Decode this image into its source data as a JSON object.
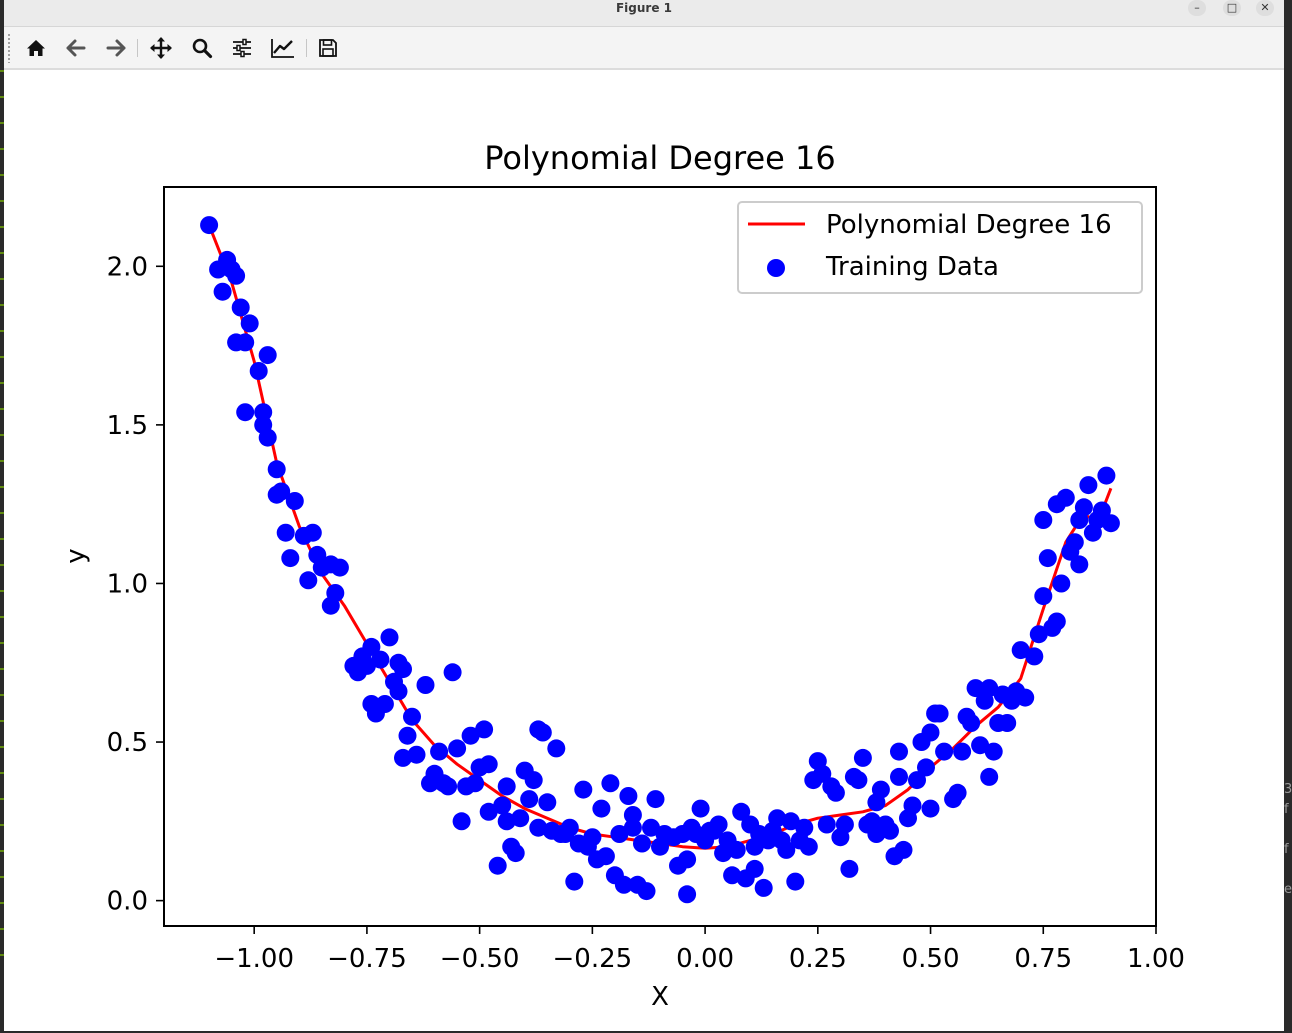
{
  "window": {
    "title": "Figure 1",
    "controls": [
      "minimize",
      "maximize",
      "close"
    ]
  },
  "toolbar": {
    "tools": [
      {
        "name": "home-icon",
        "tooltip": "Home"
      },
      {
        "name": "back-icon",
        "tooltip": "Back"
      },
      {
        "name": "forward-icon",
        "tooltip": "Forward"
      },
      {
        "name": "pan-icon",
        "tooltip": "Pan"
      },
      {
        "name": "zoom-icon",
        "tooltip": "Zoom"
      },
      {
        "name": "subplots-icon",
        "tooltip": "Subplots"
      },
      {
        "name": "customize-icon",
        "tooltip": "Customize"
      },
      {
        "name": "save-icon",
        "tooltip": "Save"
      }
    ]
  },
  "colors": {
    "line": "#ff0000",
    "points": "#0000ff",
    "axes": "#000000"
  },
  "side_text": "3\nf\n\nf\n\ne",
  "chart_data": {
    "type": "scatter",
    "title": "Polynomial Degree 16",
    "xlabel": "X",
    "ylabel": "y",
    "xlim": [
      -1.2,
      1.0
    ],
    "ylim": [
      -0.08,
      2.25
    ],
    "xticks": [
      -1.0,
      -0.75,
      -0.5,
      -0.25,
      0.0,
      0.25,
      0.5,
      0.75,
      1.0
    ],
    "xtick_labels": [
      "−1.00",
      "−0.75",
      "−0.50",
      "−0.25",
      "0.00",
      "0.25",
      "0.50",
      "0.75",
      "1.00"
    ],
    "yticks": [
      0.0,
      0.5,
      1.0,
      1.5,
      2.0
    ],
    "ytick_labels": [
      "0.0",
      "0.5",
      "1.0",
      "1.5",
      "2.0"
    ],
    "legend": {
      "placement": "upper right",
      "entries": [
        "Polynomial Degree 16",
        "Training Data"
      ]
    },
    "series": [
      {
        "name": "Polynomial Degree 16",
        "kind": "line",
        "color": "#ff0000",
        "points": [
          [
            -1.1,
            2.13
          ],
          [
            -1.05,
            1.95
          ],
          [
            -1.0,
            1.7
          ],
          [
            -0.95,
            1.38
          ],
          [
            -0.9,
            1.18
          ],
          [
            -0.85,
            1.03
          ],
          [
            -0.8,
            0.93
          ],
          [
            -0.75,
            0.81
          ],
          [
            -0.7,
            0.69
          ],
          [
            -0.65,
            0.57
          ],
          [
            -0.6,
            0.49
          ],
          [
            -0.55,
            0.43
          ],
          [
            -0.5,
            0.38
          ],
          [
            -0.45,
            0.33
          ],
          [
            -0.4,
            0.29
          ],
          [
            -0.35,
            0.26
          ],
          [
            -0.3,
            0.23
          ],
          [
            -0.25,
            0.21
          ],
          [
            -0.2,
            0.2
          ],
          [
            -0.15,
            0.19
          ],
          [
            -0.1,
            0.18
          ],
          [
            -0.05,
            0.17
          ],
          [
            0.0,
            0.165
          ],
          [
            0.05,
            0.17
          ],
          [
            0.1,
            0.19
          ],
          [
            0.15,
            0.21
          ],
          [
            0.2,
            0.24
          ],
          [
            0.25,
            0.26
          ],
          [
            0.3,
            0.27
          ],
          [
            0.35,
            0.28
          ],
          [
            0.4,
            0.3
          ],
          [
            0.45,
            0.35
          ],
          [
            0.5,
            0.42
          ],
          [
            0.55,
            0.48
          ],
          [
            0.6,
            0.55
          ],
          [
            0.65,
            0.61
          ],
          [
            0.7,
            0.7
          ],
          [
            0.75,
            0.92
          ],
          [
            0.8,
            1.13
          ],
          [
            0.84,
            1.22
          ],
          [
            0.87,
            1.19
          ],
          [
            0.9,
            1.3
          ]
        ]
      },
      {
        "name": "Training Data",
        "kind": "scatter",
        "color": "#0000ff",
        "points": [
          [
            -1.1,
            2.13
          ],
          [
            -1.08,
            1.99
          ],
          [
            -1.07,
            1.92
          ],
          [
            -1.06,
            2.02
          ],
          [
            -1.05,
            1.99
          ],
          [
            -1.04,
            1.97
          ],
          [
            -1.04,
            1.76
          ],
          [
            -1.03,
            1.87
          ],
          [
            -1.02,
            1.76
          ],
          [
            -1.01,
            1.82
          ],
          [
            -1.02,
            1.54
          ],
          [
            -0.99,
            1.67
          ],
          [
            -0.98,
            1.54
          ],
          [
            -0.98,
            1.5
          ],
          [
            -0.97,
            1.46
          ],
          [
            -0.97,
            1.72
          ],
          [
            -0.95,
            1.36
          ],
          [
            -0.95,
            1.28
          ],
          [
            -0.94,
            1.29
          ],
          [
            -0.93,
            1.16
          ],
          [
            -0.92,
            1.08
          ],
          [
            -0.91,
            1.26
          ],
          [
            -0.89,
            1.15
          ],
          [
            -0.88,
            1.01
          ],
          [
            -0.87,
            1.16
          ],
          [
            -0.86,
            1.09
          ],
          [
            -0.85,
            1.05
          ],
          [
            -0.83,
            0.93
          ],
          [
            -0.83,
            1.06
          ],
          [
            -0.82,
            0.97
          ],
          [
            -0.81,
            1.05
          ],
          [
            -0.78,
            0.74
          ],
          [
            -0.77,
            0.72
          ],
          [
            -0.76,
            0.77
          ],
          [
            -0.75,
            0.74
          ],
          [
            -0.74,
            0.8
          ],
          [
            -0.74,
            0.62
          ],
          [
            -0.73,
            0.59
          ],
          [
            -0.72,
            0.76
          ],
          [
            -0.71,
            0.62
          ],
          [
            -0.7,
            0.83
          ],
          [
            -0.69,
            0.69
          ],
          [
            -0.68,
            0.75
          ],
          [
            -0.68,
            0.66
          ],
          [
            -0.67,
            0.73
          ],
          [
            -0.67,
            0.45
          ],
          [
            -0.66,
            0.52
          ],
          [
            -0.65,
            0.58
          ],
          [
            -0.64,
            0.46
          ],
          [
            -0.62,
            0.68
          ],
          [
            -0.61,
            0.37
          ],
          [
            -0.6,
            0.4
          ],
          [
            -0.59,
            0.47
          ],
          [
            -0.58,
            0.37
          ],
          [
            -0.57,
            0.36
          ],
          [
            -0.56,
            0.72
          ],
          [
            -0.55,
            0.48
          ],
          [
            -0.54,
            0.25
          ],
          [
            -0.53,
            0.36
          ],
          [
            -0.52,
            0.52
          ],
          [
            -0.51,
            0.37
          ],
          [
            -0.5,
            0.42
          ],
          [
            -0.49,
            0.54
          ],
          [
            -0.48,
            0.43
          ],
          [
            -0.48,
            0.28
          ],
          [
            -0.46,
            0.11
          ],
          [
            -0.45,
            0.3
          ],
          [
            -0.44,
            0.36
          ],
          [
            -0.44,
            0.25
          ],
          [
            -0.43,
            0.17
          ],
          [
            -0.42,
            0.15
          ],
          [
            -0.41,
            0.26
          ],
          [
            -0.4,
            0.41
          ],
          [
            -0.39,
            0.32
          ],
          [
            -0.38,
            0.38
          ],
          [
            -0.37,
            0.23
          ],
          [
            -0.37,
            0.54
          ],
          [
            -0.36,
            0.53
          ],
          [
            -0.35,
            0.31
          ],
          [
            -0.34,
            0.22
          ],
          [
            -0.33,
            0.48
          ],
          [
            -0.32,
            0.21
          ],
          [
            -0.31,
            0.21
          ],
          [
            -0.3,
            0.23
          ],
          [
            -0.29,
            0.06
          ],
          [
            -0.28,
            0.18
          ],
          [
            -0.27,
            0.35
          ],
          [
            -0.26,
            0.17
          ],
          [
            -0.25,
            0.2
          ],
          [
            -0.24,
            0.13
          ],
          [
            -0.23,
            0.29
          ],
          [
            -0.22,
            0.14
          ],
          [
            -0.21,
            0.37
          ],
          [
            -0.2,
            0.08
          ],
          [
            -0.19,
            0.21
          ],
          [
            -0.18,
            0.05
          ],
          [
            -0.17,
            0.33
          ],
          [
            -0.16,
            0.23
          ],
          [
            -0.16,
            0.27
          ],
          [
            -0.15,
            0.05
          ],
          [
            -0.14,
            0.18
          ],
          [
            -0.13,
            0.03
          ],
          [
            -0.12,
            0.23
          ],
          [
            -0.11,
            0.32
          ],
          [
            -0.1,
            0.17
          ],
          [
            -0.09,
            0.21
          ],
          [
            -0.07,
            0.2
          ],
          [
            -0.06,
            0.11
          ],
          [
            -0.05,
            0.21
          ],
          [
            -0.04,
            0.02
          ],
          [
            -0.04,
            0.13
          ],
          [
            -0.03,
            0.23
          ],
          [
            -0.02,
            0.21
          ],
          [
            -0.01,
            0.29
          ],
          [
            0.0,
            0.19
          ],
          [
            0.01,
            0.22
          ],
          [
            0.02,
            0.22
          ],
          [
            0.03,
            0.24
          ],
          [
            0.04,
            0.15
          ],
          [
            0.05,
            0.19
          ],
          [
            0.06,
            0.08
          ],
          [
            0.07,
            0.16
          ],
          [
            0.08,
            0.28
          ],
          [
            0.09,
            0.07
          ],
          [
            0.1,
            0.24
          ],
          [
            0.11,
            0.17
          ],
          [
            0.11,
            0.1
          ],
          [
            0.12,
            0.21
          ],
          [
            0.13,
            0.04
          ],
          [
            0.14,
            0.19
          ],
          [
            0.15,
            0.22
          ],
          [
            0.16,
            0.26
          ],
          [
            0.17,
            0.19
          ],
          [
            0.18,
            0.16
          ],
          [
            0.19,
            0.25
          ],
          [
            0.2,
            0.06
          ],
          [
            0.21,
            0.19
          ],
          [
            0.22,
            0.23
          ],
          [
            0.23,
            0.17
          ],
          [
            0.24,
            0.38
          ],
          [
            0.25,
            0.44
          ],
          [
            0.26,
            0.4
          ],
          [
            0.27,
            0.24
          ],
          [
            0.28,
            0.36
          ],
          [
            0.29,
            0.34
          ],
          [
            0.3,
            0.2
          ],
          [
            0.31,
            0.24
          ],
          [
            0.32,
            0.1
          ],
          [
            0.33,
            0.39
          ],
          [
            0.34,
            0.38
          ],
          [
            0.35,
            0.45
          ],
          [
            0.36,
            0.24
          ],
          [
            0.37,
            0.25
          ],
          [
            0.38,
            0.21
          ],
          [
            0.38,
            0.31
          ],
          [
            0.39,
            0.35
          ],
          [
            0.4,
            0.24
          ],
          [
            0.41,
            0.22
          ],
          [
            0.42,
            0.14
          ],
          [
            0.43,
            0.39
          ],
          [
            0.43,
            0.47
          ],
          [
            0.44,
            0.16
          ],
          [
            0.45,
            0.26
          ],
          [
            0.46,
            0.3
          ],
          [
            0.47,
            0.38
          ],
          [
            0.48,
            0.5
          ],
          [
            0.49,
            0.42
          ],
          [
            0.5,
            0.29
          ],
          [
            0.5,
            0.53
          ],
          [
            0.51,
            0.59
          ],
          [
            0.52,
            0.59
          ],
          [
            0.53,
            0.47
          ],
          [
            0.55,
            0.32
          ],
          [
            0.56,
            0.34
          ],
          [
            0.57,
            0.47
          ],
          [
            0.58,
            0.58
          ],
          [
            0.59,
            0.56
          ],
          [
            0.6,
            0.67
          ],
          [
            0.61,
            0.49
          ],
          [
            0.62,
            0.63
          ],
          [
            0.63,
            0.67
          ],
          [
            0.63,
            0.39
          ],
          [
            0.64,
            0.47
          ],
          [
            0.65,
            0.56
          ],
          [
            0.66,
            0.65
          ],
          [
            0.67,
            0.56
          ],
          [
            0.68,
            0.63
          ],
          [
            0.69,
            0.66
          ],
          [
            0.7,
            0.79
          ],
          [
            0.71,
            0.64
          ],
          [
            0.73,
            0.77
          ],
          [
            0.74,
            0.84
          ],
          [
            0.75,
            0.96
          ],
          [
            0.75,
            1.2
          ],
          [
            0.76,
            1.08
          ],
          [
            0.77,
            0.86
          ],
          [
            0.78,
            0.88
          ],
          [
            0.78,
            1.25
          ],
          [
            0.79,
            1.0
          ],
          [
            0.8,
            1.27
          ],
          [
            0.81,
            1.1
          ],
          [
            0.82,
            1.13
          ],
          [
            0.83,
            1.2
          ],
          [
            0.83,
            1.06
          ],
          [
            0.84,
            1.24
          ],
          [
            0.85,
            1.31
          ],
          [
            0.86,
            1.16
          ],
          [
            0.87,
            1.2
          ],
          [
            0.88,
            1.23
          ],
          [
            0.89,
            1.34
          ],
          [
            0.9,
            1.19
          ]
        ]
      }
    ]
  }
}
